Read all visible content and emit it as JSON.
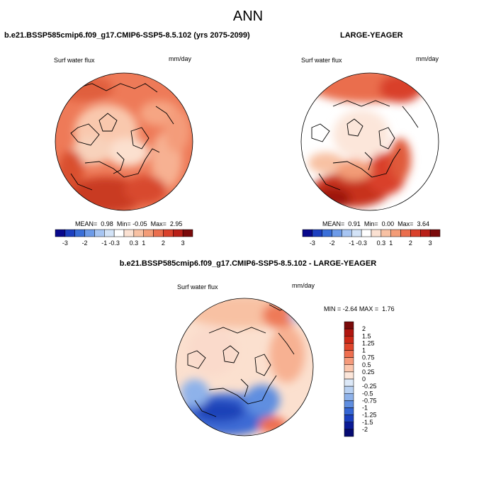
{
  "figure": {
    "title": "ANN"
  },
  "panels": [
    {
      "case_title": "b.e21.BSSP585cmip6.f09_g17.CMIP6-SSP5-8.5.102 (yrs 2075-2099)",
      "variable": "Surf water flux",
      "units": "mm/day",
      "stats": {
        "mean_label": "MEAN=",
        "mean": "0.98",
        "min_label": "Min=",
        "min": "-0.05",
        "max_label": "Max=",
        "max": "2.95"
      },
      "colorbar_ticks": [
        "-3",
        "-2",
        "-1",
        "-0.3",
        "0.3",
        "1",
        "2",
        "3"
      ]
    },
    {
      "case_title": "LARGE-YEAGER",
      "variable": "Surf water flux",
      "units": "mm/day",
      "stats": {
        "mean_label": "MEAN=",
        "mean": "0.91",
        "min_label": "Min=",
        "min": "0.00",
        "max_label": "Max=",
        "max": "3.64"
      },
      "colorbar_ticks": [
        "-3",
        "-2",
        "-1",
        "-0.3",
        "0.3",
        "1",
        "2",
        "3"
      ]
    },
    {
      "case_title": "b.e21.BSSP585cmip6.f09_g17.CMIP6-SSP5-8.5.102 - LARGE-YEAGER",
      "variable": "Surf water flux",
      "units": "mm/day",
      "stats": {
        "min_label": "MIN =",
        "min": "-2.64",
        "max_label": "MAX =",
        "max": "1.76"
      },
      "colorbar_ticks": [
        "2",
        "1.5",
        "1.25",
        "1",
        "0.75",
        "0.5",
        "0.25",
        "0",
        "-0.25",
        "-0.5",
        "-0.75",
        "-1",
        "-1.25",
        "-1.5",
        "-2"
      ]
    }
  ],
  "colors": {
    "abs_scale": [
      "#08088c",
      "#1c3fbf",
      "#3a6fd8",
      "#6d9be8",
      "#a7c5f2",
      "#d3e3f7",
      "#ffffff",
      "#fbe1d2",
      "#f8c1a3",
      "#f39c77",
      "#ea6e4d",
      "#d9412b",
      "#b81f17",
      "#7a0a0a"
    ],
    "diff_scale": [
      "#7a0a0a",
      "#b0150f",
      "#cc2817",
      "#e0452c",
      "#ee6e4f",
      "#f59a7b",
      "#fbc6ad",
      "#fce6da",
      "#dce8f7",
      "#b8d0f1",
      "#8eb2ea",
      "#5f8ee0",
      "#3566d4",
      "#1a3fbf",
      "#0a1a96",
      "#060a72"
    ]
  }
}
